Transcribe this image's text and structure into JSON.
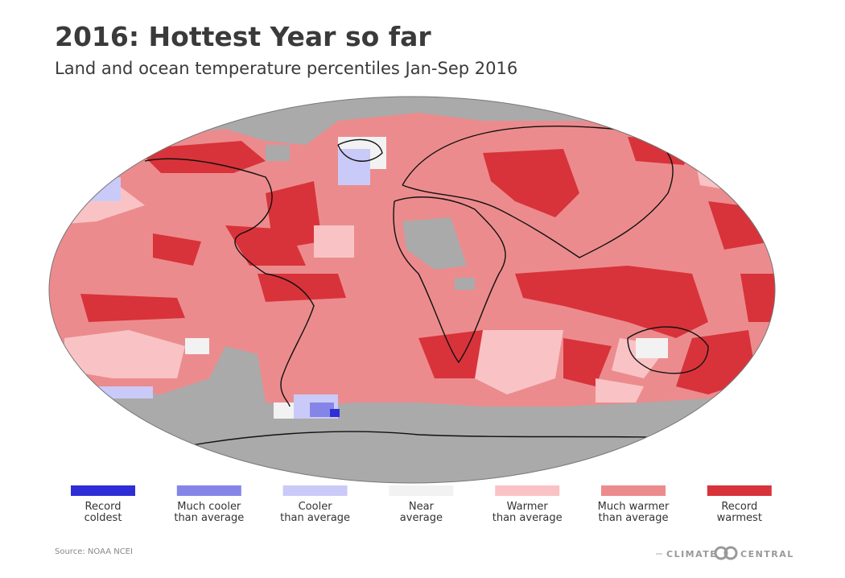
{
  "header": {
    "title": "2016: Hottest Year so far",
    "subtitle": "Land and ocean temperature percentiles Jan-Sep 2016"
  },
  "legend": [
    {
      "color": "#2e2ed6",
      "lines": [
        "Record",
        "coldest"
      ]
    },
    {
      "color": "#8585e8",
      "lines": [
        "Much cooler",
        "than average"
      ]
    },
    {
      "color": "#cacaf8",
      "lines": [
        "Cooler",
        "than average"
      ]
    },
    {
      "color": "#f2f2f2",
      "lines": [
        "Near",
        "average"
      ]
    },
    {
      "color": "#f9c3c5",
      "lines": [
        "Warmer",
        "than average"
      ]
    },
    {
      "color": "#ec8b8d",
      "lines": [
        "Much warmer",
        "than average"
      ]
    },
    {
      "color": "#d8333a",
      "lines": [
        "Record",
        "warmest"
      ]
    }
  ],
  "footer": {
    "source": "Source: NOAA NCEI",
    "logo_left": "CLIMATE",
    "logo_right": "CENTRAL"
  }
}
